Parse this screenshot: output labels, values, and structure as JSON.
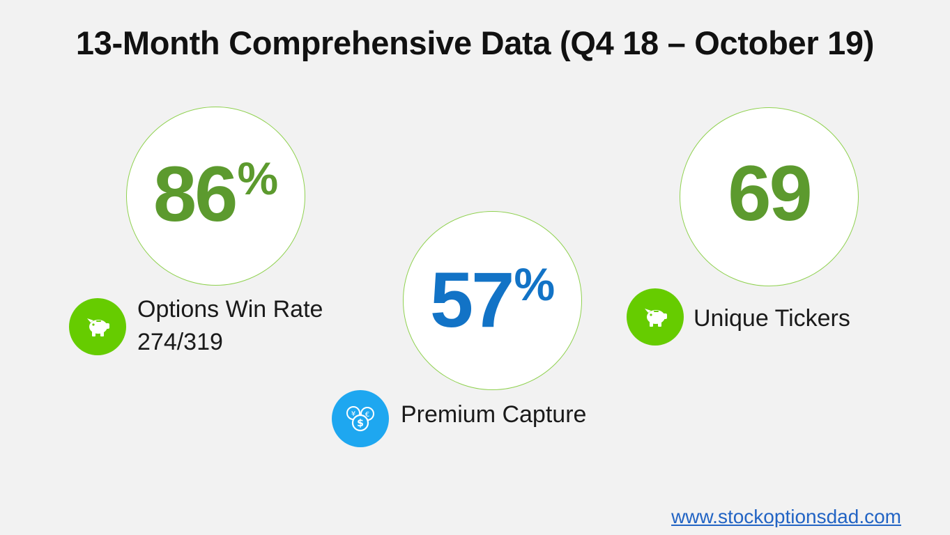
{
  "title": "13-Month Comprehensive Data (Q4 18 – October 19)",
  "colors": {
    "green": "#5c9a2e",
    "bright_green": "#66cc00",
    "blue": "#1273c6",
    "light_blue": "#1ea7f0",
    "circle_border": "#8fd14f"
  },
  "stats": {
    "win_rate": {
      "value": "86",
      "unit": "%",
      "label": "Options Win Rate",
      "detail": "274/319",
      "icon": "piggy-bank-icon"
    },
    "premium_capture": {
      "value": "57",
      "unit": "%",
      "label": "Premium Capture",
      "icon": "coins-icon"
    },
    "unique_tickers": {
      "value": "69",
      "label": "Unique Tickers",
      "icon": "piggy-bank-icon"
    }
  },
  "footer": {
    "link_text": "www.stockoptionsdad.com"
  }
}
